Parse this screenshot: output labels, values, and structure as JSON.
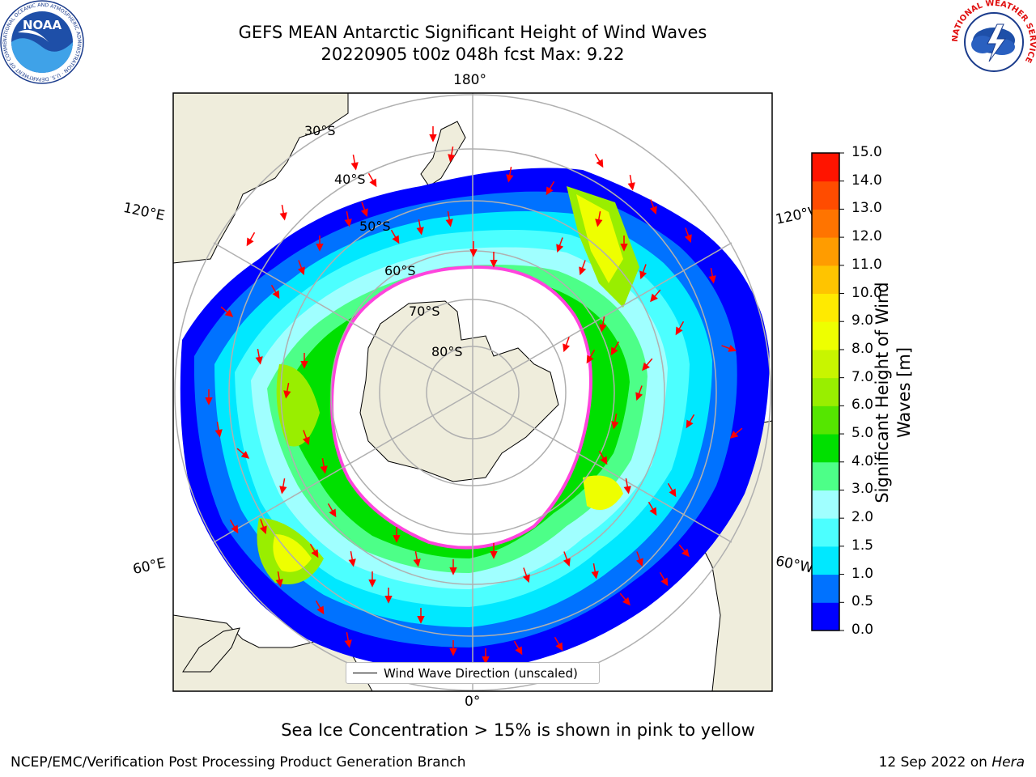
{
  "title_line1": "GEFS MEAN Antarctic Significant Height of Wind Waves",
  "title_line2": "20220905 t00z 048h fcst   Max: 9.22",
  "logos": {
    "left": "noara-logo",
    "right": "nws-logo",
    "left_text": "NOAA",
    "left_ring_text": "NATIONAL OCEANIC AND ATMOSPHERIC ADMINISTRATION · U.S. DEPARTMENT OF COMMERCE",
    "right_ring_text": "NATIONAL WEATHER SERVICE"
  },
  "map": {
    "lon_labels": {
      "top": "180°",
      "left_upper": "120°E",
      "right_upper": "120°W",
      "left_lower": "60°E",
      "right_lower": "60°W",
      "bottom": "0°"
    },
    "lat_labels": [
      "30°S",
      "40°S",
      "50°S",
      "60°S",
      "70°S",
      "80°S"
    ],
    "legend_label": "Wind Wave Direction (unscaled)",
    "colors": {
      "land": "#efeddc",
      "arrow": "#ff0000",
      "ice_edge": "#ff44dd",
      "grid": "#b0b0b0"
    }
  },
  "colorbar": {
    "label": "Significant Height of Wind Waves [m]",
    "ticks": [
      "0.0",
      "0.5",
      "1.0",
      "1.5",
      "2.0",
      "3.0",
      "4.0",
      "5.0",
      "6.0",
      "7.0",
      "8.0",
      "9.0",
      "10.0",
      "11.0",
      "12.0",
      "13.0",
      "14.0",
      "15.0"
    ],
    "colors": [
      "#0000ff",
      "#0072ff",
      "#00e8ff",
      "#4cffff",
      "#a0ffff",
      "#4dff88",
      "#00e000",
      "#55e600",
      "#99ee00",
      "#c8f500",
      "#eeff00",
      "#ffea00",
      "#ffc400",
      "#ff9c00",
      "#ff7400",
      "#ff4c00",
      "#ff1400"
    ]
  },
  "note": "Sea Ice Concentration > 15% is shown in pink to yellow",
  "footer_left": "NCEP/EMC/Verification Post Processing Product Generation Branch",
  "footer_right_prefix": "12 Sep 2022 on ",
  "footer_right_host": "Hera"
}
